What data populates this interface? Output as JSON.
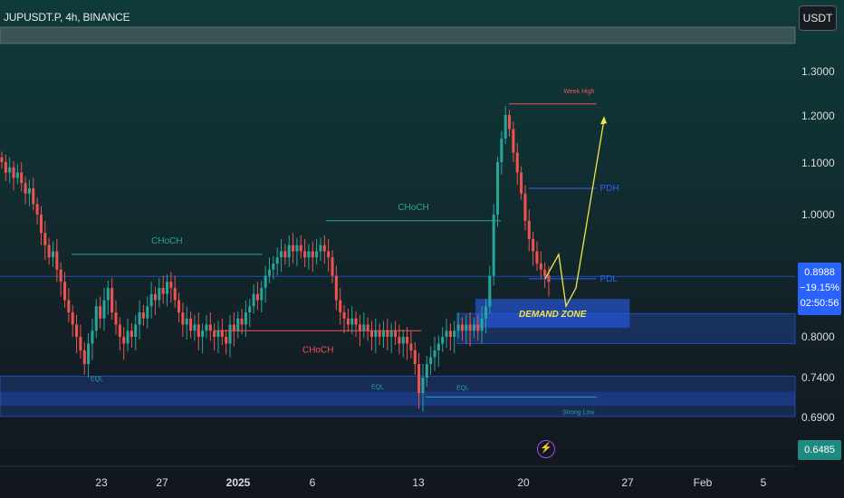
{
  "header": {
    "symbol": "JUPUSDT.P, 4h, BINANCE",
    "currency": "USDT"
  },
  "colors": {
    "up": "#26a69a",
    "down": "#ef5350",
    "structure_green": "#26a69a",
    "structure_red": "#ef5350",
    "level_blue": "#2962ff",
    "projection": "#f5e64a",
    "zone_label": "#f5e64a"
  },
  "chart_data": {
    "type": "candlestick",
    "x_labels": [
      "23",
      "27",
      "2025",
      "6",
      "13",
      "20",
      "27",
      "Feb",
      "5"
    ],
    "y_ticks": [
      "1.3000",
      "1.2000",
      "1.1000",
      "1.0000",
      "0.8000",
      "0.7400",
      "0.6900"
    ],
    "ylim": [
      0.62,
      1.38
    ],
    "y_scale": "log",
    "current_price": {
      "price": "0.8988",
      "change": "−19.15%",
      "countdown": "02:50:56"
    },
    "low_marker": "0.6485",
    "candles_close": [
      1.1,
      1.08,
      1.09,
      1.07,
      1.08,
      1.06,
      1.04,
      1.05,
      1.02,
      1.0,
      0.97,
      0.95,
      0.93,
      0.94,
      0.91,
      0.89,
      0.86,
      0.84,
      0.82,
      0.8,
      0.78,
      0.76,
      0.79,
      0.81,
      0.85,
      0.83,
      0.86,
      0.88,
      0.84,
      0.82,
      0.8,
      0.79,
      0.81,
      0.8,
      0.82,
      0.84,
      0.83,
      0.85,
      0.87,
      0.86,
      0.88,
      0.87,
      0.89,
      0.88,
      0.86,
      0.84,
      0.82,
      0.83,
      0.81,
      0.82,
      0.8,
      0.81,
      0.82,
      0.81,
      0.8,
      0.81,
      0.8,
      0.79,
      0.82,
      0.81,
      0.83,
      0.82,
      0.84,
      0.85,
      0.87,
      0.86,
      0.88,
      0.9,
      0.91,
      0.92,
      0.93,
      0.94,
      0.93,
      0.95,
      0.94,
      0.95,
      0.94,
      0.93,
      0.94,
      0.93,
      0.94,
      0.95,
      0.94,
      0.93,
      0.9,
      0.86,
      0.84,
      0.83,
      0.82,
      0.83,
      0.82,
      0.81,
      0.82,
      0.81,
      0.8,
      0.81,
      0.8,
      0.81,
      0.8,
      0.81,
      0.8,
      0.79,
      0.8,
      0.79,
      0.78,
      0.76,
      0.72,
      0.74,
      0.76,
      0.77,
      0.78,
      0.79,
      0.8,
      0.81,
      0.8,
      0.81,
      0.82,
      0.81,
      0.82,
      0.81,
      0.82,
      0.81,
      0.83,
      0.85,
      0.9,
      1.0,
      1.1,
      1.15,
      1.2,
      1.17,
      1.12,
      1.08,
      1.04,
      0.99,
      0.96,
      0.94,
      0.92,
      0.91,
      0.9,
      0.89
    ],
    "structure_lines": [
      {
        "label": "CHoCH",
        "level": 0.935,
        "from": 0.09,
        "to": 0.33,
        "color": "green"
      },
      {
        "label": "CHoCH",
        "level": 0.99,
        "from": 0.41,
        "to": 0.63,
        "color": "green"
      },
      {
        "label": "CHoCH",
        "level": 0.81,
        "from": 0.27,
        "to": 0.53,
        "color": "red"
      },
      {
        "label": "Week High",
        "level": 1.225,
        "from": 0.64,
        "to": 0.75,
        "color": "red"
      },
      {
        "label": "PDH",
        "level": 1.05,
        "from": 0.665,
        "to": 0.75,
        "color": "blue"
      },
      {
        "label": "PDL",
        "level": 0.895,
        "from": 0.665,
        "to": 0.75,
        "color": "blue"
      },
      {
        "label": "Strong Low",
        "level": 0.715,
        "from": 0.535,
        "to": 0.75,
        "color": "green"
      }
    ],
    "eql_labels": [
      {
        "text": "EQL",
        "level": 0.77
      },
      {
        "text": "EQL",
        "level": 0.758
      },
      {
        "text": "EQL",
        "level": 0.757
      }
    ],
    "demand_zone": {
      "label": "DEMAND ZONE",
      "top": 0.862,
      "bottom": 0.815
    },
    "projection_path": [
      0.895,
      0.935,
      0.85,
      0.88,
      1.19
    ]
  }
}
